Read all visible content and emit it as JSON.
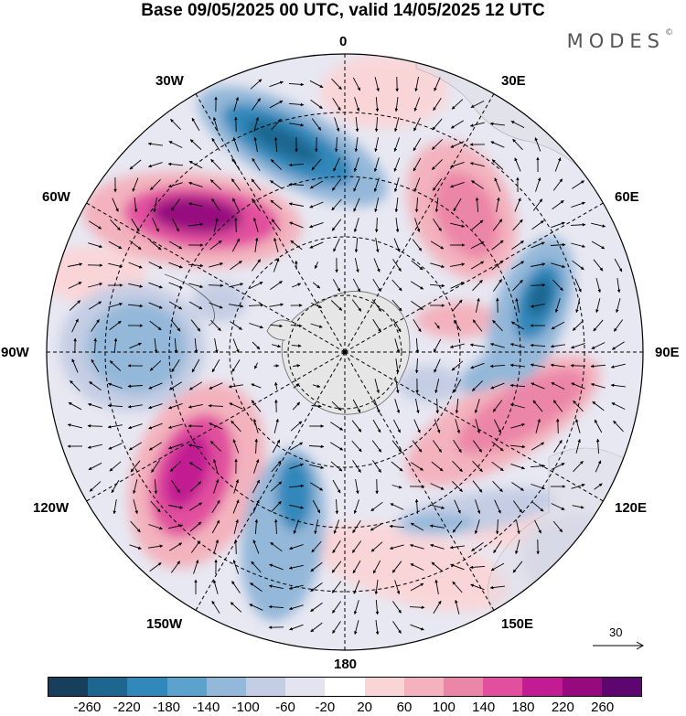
{
  "title": "Base 09/05/2025 00 UTC, valid 14/05/2025 12 UTC",
  "brand": "MODES",
  "brand_mark": "©",
  "longitude_labels": {
    "lon_0": "0",
    "lon_30e": "30E",
    "lon_60e": "60E",
    "lon_90e": "90E",
    "lon_120e": "120E",
    "lon_150e": "150E",
    "lon_180": "180",
    "lon_150w": "150W",
    "lon_120w": "120W",
    "lon_90w": "90W",
    "lon_60w": "60W",
    "lon_30w": "30W"
  },
  "vector_scale_label": "30",
  "colorbar": {
    "colors": [
      "#173f5c",
      "#1d6690",
      "#3188bb",
      "#5ba3cc",
      "#94b8d9",
      "#c4cde4",
      "#e4e4f0",
      "#ffffff",
      "#f9d5d8",
      "#f3b2bd",
      "#ec86a8",
      "#e14f9e",
      "#c21b93",
      "#97097f",
      "#5e0670"
    ],
    "labels": [
      "-260",
      "-220",
      "-180",
      "-140",
      "-100",
      "-60",
      "-20",
      "20",
      "60",
      "100",
      "140",
      "180",
      "220",
      "260"
    ]
  },
  "icons": {
    "north_arrow_scale": "vector-scale-arrow"
  }
}
